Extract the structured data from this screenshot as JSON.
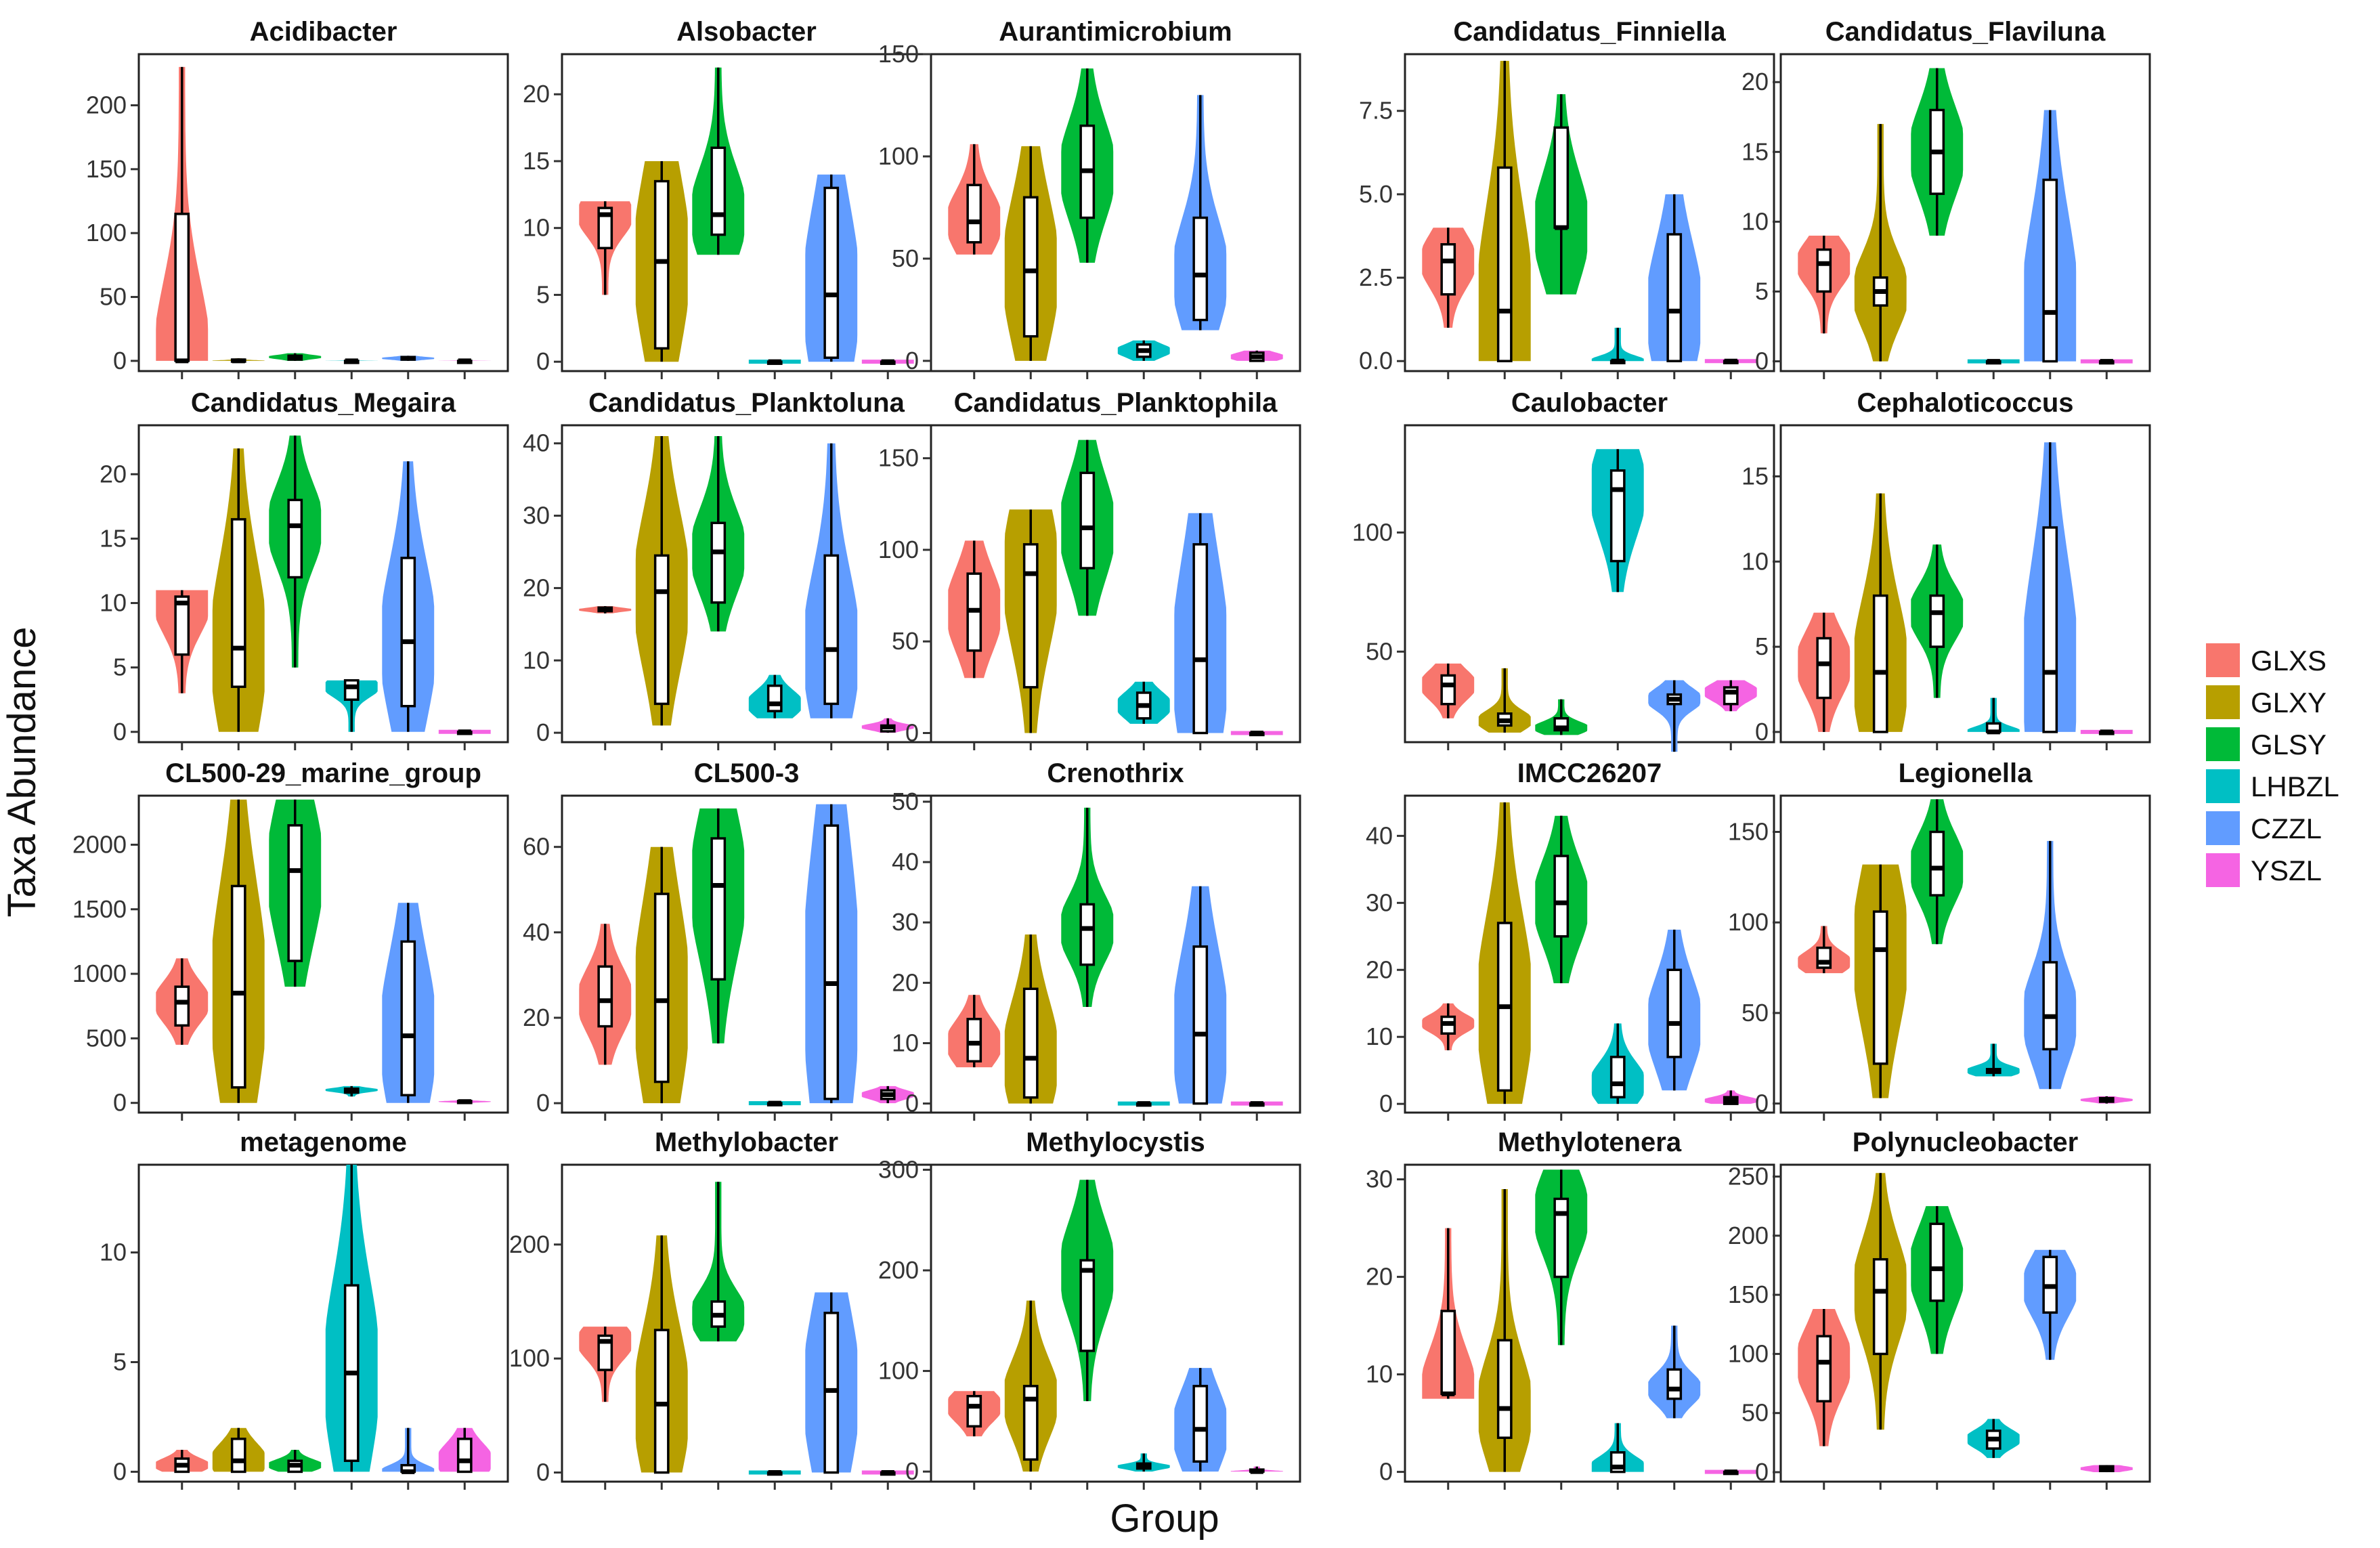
{
  "chart_data": {
    "type": "violin",
    "x_axis_title": "Group",
    "y_axis_title": "Taxa Abundance",
    "groups": [
      {
        "name": "GLXS",
        "color": "#F8766D"
      },
      {
        "name": "GLXY",
        "color": "#B79F00"
      },
      {
        "name": "GLSY",
        "color": "#00BA38"
      },
      {
        "name": "LHBZL",
        "color": "#00BFC4"
      },
      {
        "name": "CZZL",
        "color": "#619CFF"
      },
      {
        "name": "YSZL",
        "color": "#F564E3"
      }
    ],
    "panels": [
      {
        "title": "Acidibacter",
        "ylim": [
          -8,
          240
        ],
        "ticks": [
          0,
          50,
          100,
          150,
          200
        ],
        "tick_labels": [
          "0",
          "50",
          "100",
          "150",
          "200"
        ],
        "stats": [
          [
            0,
            0,
            0,
            115,
            230
          ],
          [
            0,
            0,
            0,
            1,
            2
          ],
          [
            0,
            1,
            3,
            4,
            6
          ],
          [
            0,
            0,
            0,
            0,
            1
          ],
          [
            0,
            1,
            2,
            3,
            4
          ],
          [
            0,
            0,
            0,
            0,
            1
          ]
        ]
      },
      {
        "title": "Alsobacter",
        "ylim": [
          -0.7,
          23
        ],
        "ticks": [
          0,
          5,
          10,
          15,
          20
        ],
        "tick_labels": [
          "0",
          "5",
          "10",
          "15",
          "20"
        ],
        "stats": [
          [
            5,
            8.5,
            11,
            11.5,
            12
          ],
          [
            0,
            1,
            7.5,
            13.5,
            15
          ],
          [
            8,
            9.5,
            11,
            16,
            22
          ],
          [
            0,
            0,
            0,
            0,
            0
          ],
          [
            0,
            0.3,
            5,
            13,
            14
          ],
          [
            0,
            0,
            0,
            0,
            0
          ]
        ]
      },
      {
        "title": "Aurantimicrobium",
        "ylim": [
          -5,
          150
        ],
        "ticks": [
          0,
          50,
          100,
          150
        ],
        "tick_labels": [
          "0",
          "50",
          "100",
          "150"
        ],
        "stats": [
          [
            52,
            58,
            68,
            86,
            106
          ],
          [
            0,
            12,
            44,
            80,
            105
          ],
          [
            48,
            70,
            93,
            115,
            143
          ],
          [
            0,
            2,
            5,
            8,
            10
          ],
          [
            15,
            20,
            42,
            70,
            130
          ],
          [
            0,
            0,
            2,
            4,
            5
          ]
        ]
      },
      {
        "title": "Candidatus_Finniella",
        "ylim": [
          -0.3,
          9.2
        ],
        "ticks": [
          0,
          2.5,
          5,
          7.5
        ],
        "tick_labels": [
          "0.0",
          "2.5",
          "5.0",
          "7.5"
        ],
        "stats": [
          [
            1,
            2,
            3,
            3.5,
            4
          ],
          [
            0,
            0,
            1.5,
            5.8,
            9
          ],
          [
            2,
            4,
            4,
            7,
            8
          ],
          [
            0,
            0,
            0,
            0,
            1
          ],
          [
            0,
            0,
            1.5,
            3.8,
            5
          ],
          [
            0,
            0,
            0,
            0,
            0
          ]
        ]
      },
      {
        "title": "Candidatus_Flaviluna",
        "ylim": [
          -0.7,
          22
        ],
        "ticks": [
          0,
          5,
          10,
          15,
          20
        ],
        "tick_labels": [
          "0",
          "5",
          "10",
          "15",
          "20"
        ],
        "stats": [
          [
            2,
            5,
            7,
            8,
            9
          ],
          [
            0,
            4,
            5,
            6,
            17
          ],
          [
            9,
            12,
            15,
            18,
            21
          ],
          [
            0,
            0,
            0,
            0,
            0
          ],
          [
            0,
            0,
            3.5,
            13,
            18
          ],
          [
            0,
            0,
            0,
            0,
            0
          ]
        ]
      },
      {
        "title": "Candidatus_Megaira",
        "ylim": [
          -0.8,
          23.8
        ],
        "ticks": [
          0,
          5,
          10,
          15,
          20
        ],
        "tick_labels": [
          "0",
          "5",
          "10",
          "15",
          "20"
        ],
        "stats": [
          [
            3,
            6,
            10,
            10.5,
            11
          ],
          [
            0,
            3.5,
            6.5,
            16.5,
            22
          ],
          [
            5,
            12,
            16,
            18,
            23
          ],
          [
            0,
            2.5,
            3.5,
            4,
            4
          ],
          [
            0,
            2,
            7,
            13.5,
            21
          ],
          [
            0,
            0,
            0,
            0,
            0
          ]
        ]
      },
      {
        "title": "Candidatus_Planktoluna",
        "ylim": [
          -1.3,
          42.5
        ],
        "ticks": [
          0,
          10,
          20,
          30,
          40
        ],
        "tick_labels": [
          "0",
          "10",
          "20",
          "30",
          "40"
        ],
        "stats": [
          [
            16.5,
            16.8,
            17,
            17.3,
            17.5
          ],
          [
            1,
            4,
            19.5,
            24.5,
            41
          ],
          [
            14,
            18,
            25,
            29,
            41
          ],
          [
            2,
            3,
            4,
            6.5,
            8
          ],
          [
            2,
            4,
            11.5,
            24.5,
            40
          ],
          [
            0,
            0.2,
            0.8,
            1,
            2
          ]
        ]
      },
      {
        "title": "Candidatus_Planktophila",
        "ylim": [
          -5,
          168
        ],
        "ticks": [
          0,
          50,
          100,
          150
        ],
        "tick_labels": [
          "0",
          "50",
          "100",
          "150"
        ],
        "stats": [
          [
            30,
            45,
            67,
            87,
            105
          ],
          [
            0,
            25,
            87,
            103,
            122
          ],
          [
            64,
            90,
            112,
            142,
            160
          ],
          [
            5,
            8,
            15,
            22,
            28
          ],
          [
            0,
            0,
            40,
            103,
            120
          ],
          [
            0,
            0,
            0,
            0,
            0
          ]
        ]
      },
      {
        "title": "Caulobacter",
        "ylim": [
          12,
          145
        ],
        "ticks": [
          50,
          100
        ],
        "tick_labels": [
          "50",
          "100"
        ],
        "stats": [
          [
            22,
            28,
            36,
            40,
            45
          ],
          [
            16,
            19,
            21,
            24,
            43
          ],
          [
            15,
            17,
            18,
            22,
            30
          ],
          [
            75,
            88,
            118,
            126,
            135
          ],
          [
            8,
            28,
            30,
            32,
            38
          ],
          [
            25,
            28,
            33,
            35,
            38
          ]
        ]
      },
      {
        "title": "Cephaloticoccus",
        "ylim": [
          -0.6,
          18
        ],
        "ticks": [
          0,
          5,
          10,
          15
        ],
        "tick_labels": [
          "0",
          "5",
          "10",
          "15"
        ],
        "stats": [
          [
            0,
            2,
            4,
            5.5,
            7
          ],
          [
            0,
            0,
            3.5,
            8,
            14
          ],
          [
            2,
            5,
            7,
            8,
            11
          ],
          [
            0,
            0,
            0,
            0.5,
            2
          ],
          [
            0,
            0,
            3.5,
            12,
            17
          ],
          [
            0,
            0,
            0,
            0,
            0
          ]
        ]
      },
      {
        "title": "CL500-29_marine_group",
        "ylim": [
          -75,
          2380
        ],
        "ticks": [
          0,
          500,
          1000,
          1500,
          2000
        ],
        "tick_labels": [
          "0",
          "500",
          "1000",
          "1500",
          "2000"
        ],
        "stats": [
          [
            450,
            600,
            780,
            900,
            1120
          ],
          [
            0,
            120,
            850,
            1680,
            2350
          ],
          [
            900,
            1100,
            1800,
            2150,
            2350
          ],
          [
            50,
            80,
            100,
            110,
            130
          ],
          [
            0,
            60,
            520,
            1250,
            1550
          ],
          [
            0,
            5,
            10,
            15,
            20
          ]
        ]
      },
      {
        "title": "CL500-3",
        "ylim": [
          -2.2,
          72
        ],
        "ticks": [
          0,
          20,
          40,
          60
        ],
        "tick_labels": [
          "0",
          "20",
          "40",
          "60"
        ],
        "stats": [
          [
            9,
            18,
            24,
            32,
            42
          ],
          [
            0,
            5,
            24,
            49,
            60
          ],
          [
            14,
            29,
            51,
            62,
            69
          ],
          [
            0,
            0,
            0,
            0,
            0
          ],
          [
            0,
            1,
            28,
            65,
            70
          ],
          [
            0,
            1,
            2,
            3,
            4
          ]
        ]
      },
      {
        "title": "Crenothrix",
        "ylim": [
          -1.5,
          51
        ],
        "ticks": [
          0,
          10,
          20,
          30,
          40,
          50
        ],
        "tick_labels": [
          "0",
          "10",
          "20",
          "30",
          "40",
          "50"
        ],
        "stats": [
          [
            6,
            7,
            10,
            14,
            18
          ],
          [
            0,
            1,
            7.5,
            19,
            28
          ],
          [
            16,
            23,
            29,
            33,
            49
          ],
          [
            0,
            0,
            0,
            0,
            0
          ],
          [
            0,
            0,
            11.5,
            26,
            36
          ],
          [
            0,
            0,
            0,
            0,
            0
          ]
        ]
      },
      {
        "title": "IMCC26207",
        "ylim": [
          -1.3,
          46
        ],
        "ticks": [
          0,
          10,
          20,
          30,
          40
        ],
        "tick_labels": [
          "0",
          "10",
          "20",
          "30",
          "40"
        ],
        "stats": [
          [
            8,
            10.5,
            12,
            13,
            15
          ],
          [
            0,
            2,
            14.5,
            27,
            45
          ],
          [
            18,
            25,
            30,
            37,
            43
          ],
          [
            0,
            1,
            3,
            7,
            12
          ],
          [
            2,
            7,
            12,
            20,
            26
          ],
          [
            0,
            0,
            0.5,
            1,
            2
          ]
        ]
      },
      {
        "title": "Legionella",
        "ylim": [
          -5,
          170
        ],
        "ticks": [
          0,
          50,
          100,
          150
        ],
        "tick_labels": [
          "0",
          "50",
          "100",
          "150"
        ],
        "stats": [
          [
            72,
            75,
            78,
            86,
            98
          ],
          [
            3,
            22,
            85,
            106,
            132
          ],
          [
            88,
            115,
            130,
            150,
            168
          ],
          [
            15,
            17,
            18,
            19,
            33
          ],
          [
            8,
            30,
            48,
            78,
            145
          ],
          [
            0,
            1,
            2,
            3,
            4
          ]
        ]
      },
      {
        "title": "metagenome",
        "ylim": [
          -0.45,
          14
        ],
        "ticks": [
          0,
          5,
          10
        ],
        "tick_labels": [
          "0",
          "5",
          "10"
        ],
        "stats": [
          [
            0,
            0,
            0.3,
            0.6,
            1
          ],
          [
            0,
            0,
            0.5,
            1.5,
            2
          ],
          [
            0,
            0,
            0.3,
            0.5,
            1
          ],
          [
            0,
            0.5,
            4.5,
            8.5,
            14
          ],
          [
            0,
            0,
            0,
            0.3,
            2
          ],
          [
            0,
            0,
            0.5,
            1.5,
            2
          ]
        ]
      },
      {
        "title": "Methylobacter",
        "ylim": [
          -8,
          270
        ],
        "ticks": [
          0,
          100,
          200
        ],
        "tick_labels": [
          "0",
          "100",
          "200"
        ],
        "stats": [
          [
            62,
            90,
            115,
            120,
            128
          ],
          [
            0,
            0,
            60,
            125,
            208
          ],
          [
            115,
            128,
            138,
            150,
            255
          ],
          [
            0,
            0,
            0,
            0,
            0
          ],
          [
            0,
            0,
            72,
            140,
            158
          ],
          [
            0,
            0,
            0,
            0,
            0
          ]
        ]
      },
      {
        "title": "Methylocystis",
        "ylim": [
          -10,
          305
        ],
        "ticks": [
          0,
          100,
          200,
          300
        ],
        "tick_labels": [
          "0",
          "100",
          "200",
          "300"
        ],
        "stats": [
          [
            35,
            45,
            65,
            75,
            80
          ],
          [
            0,
            12,
            72,
            85,
            170
          ],
          [
            70,
            120,
            200,
            210,
            290
          ],
          [
            0,
            3,
            5,
            8,
            18
          ],
          [
            0,
            10,
            42,
            85,
            103
          ],
          [
            0,
            0,
            0,
            2,
            5
          ]
        ]
      },
      {
        "title": "Methylotenera",
        "ylim": [
          -1,
          31.5
        ],
        "ticks": [
          0,
          10,
          20,
          30
        ],
        "tick_labels": [
          "0",
          "10",
          "20",
          "30"
        ],
        "stats": [
          [
            7.5,
            8,
            8,
            16.5,
            25
          ],
          [
            0,
            3.5,
            6.5,
            13.5,
            29
          ],
          [
            13,
            20,
            26.5,
            28,
            31
          ],
          [
            0,
            0,
            0.5,
            2,
            5
          ],
          [
            5.5,
            7.5,
            8.5,
            10.5,
            15
          ],
          [
            0,
            0,
            0,
            0,
            0
          ]
        ]
      },
      {
        "title": "Polynucleobacter",
        "ylim": [
          -8,
          260
        ],
        "ticks": [
          0,
          50,
          100,
          150,
          200,
          250
        ],
        "tick_labels": [
          "0",
          "50",
          "100",
          "150",
          "200",
          "250"
        ],
        "stats": [
          [
            22,
            60,
            93,
            115,
            138
          ],
          [
            36,
            100,
            153,
            180,
            253
          ],
          [
            100,
            145,
            172,
            210,
            225
          ],
          [
            12,
            20,
            28,
            35,
            45
          ],
          [
            95,
            135,
            157,
            182,
            188
          ],
          [
            0,
            1,
            3,
            5,
            6
          ]
        ]
      }
    ]
  }
}
